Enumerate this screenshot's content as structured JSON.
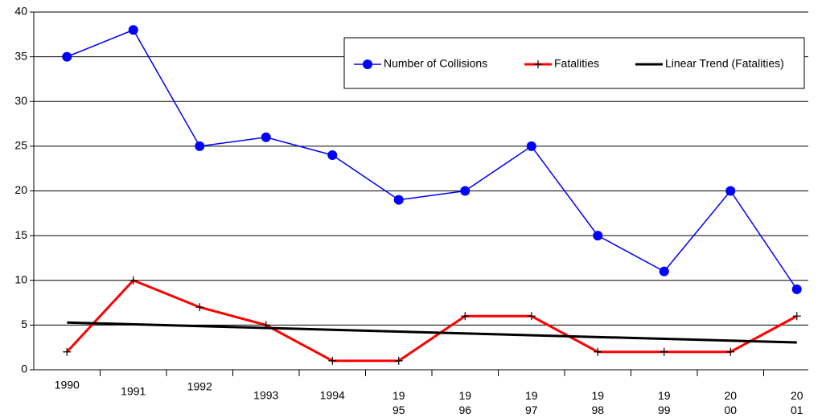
{
  "chart_data": {
    "type": "line",
    "categories": [
      "1990",
      "1991",
      "1992",
      "1993",
      "1994",
      "19\n95",
      "19\n96",
      "19\n97",
      "19\n98",
      "19\n99",
      "20\n00",
      "20\n01"
    ],
    "series": [
      {
        "name": "Number of Collisions",
        "color": "#0000ff",
        "marker": "circle",
        "values": [
          35,
          38,
          25,
          26,
          24,
          19,
          20,
          25,
          15,
          11,
          20,
          9
        ]
      },
      {
        "name": "Fatalities",
        "color": "#ff0000",
        "marker": "plus",
        "values": [
          2,
          10,
          7,
          5,
          1,
          1,
          6,
          6,
          2,
          2,
          2,
          6
        ]
      }
    ],
    "trendline": {
      "name": "Linear Trend (Fatalities)",
      "color": "#000000",
      "of_series": 1
    },
    "ylim": [
      0,
      40
    ],
    "yticks": [
      0,
      5,
      10,
      15,
      20,
      25,
      30,
      35,
      40
    ],
    "grid": true,
    "legend": "top-right"
  }
}
